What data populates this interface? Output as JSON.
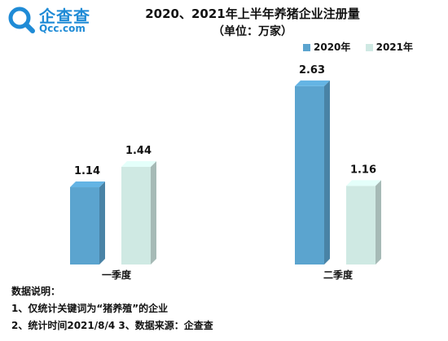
{
  "logo": {
    "name": "企查查",
    "url": "Qcc.com"
  },
  "chart_data": {
    "type": "bar",
    "title": "2020、2021年上半年养猪企业注册量",
    "subtitle": "（单位：万家）",
    "categories": [
      "一季度",
      "二季度"
    ],
    "series": [
      {
        "name": "2020年",
        "values": [
          1.14,
          2.63
        ],
        "color": "#5ba4cf"
      },
      {
        "name": "2021年",
        "values": [
          1.44,
          1.16
        ],
        "color": "#cfe9e3"
      }
    ],
    "ylim": [
      0,
      3.0
    ],
    "grid": false,
    "legend_position": "top-right",
    "bar_style": "3d"
  },
  "notes": {
    "heading": "数据说明：",
    "line1": "1、仅统计关键词为“猪养殖”的企业",
    "line2": "2、统计时间2021/8/4   3、数据来源：企查查"
  }
}
